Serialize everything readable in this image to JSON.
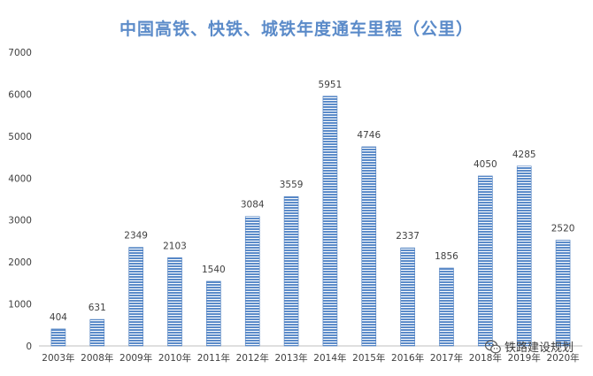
{
  "chart_data": {
    "type": "bar",
    "title": "中国高铁、快铁、城铁年度通车里程（公里）",
    "categories": [
      "2003年",
      "2008年",
      "2009年",
      "2010年",
      "2011年",
      "2012年",
      "2013年",
      "2014年",
      "2015年",
      "2016年",
      "2017年",
      "2018年",
      "2019年",
      "2020年"
    ],
    "values": [
      404,
      631,
      2349,
      2103,
      1540,
      3084,
      3559,
      5951,
      4746,
      2337,
      1856,
      4050,
      4285,
      2520
    ],
    "ylim": [
      0,
      7000
    ],
    "yticks": [
      0,
      1000,
      2000,
      3000,
      4000,
      5000,
      6000,
      7000
    ],
    "grid": false,
    "legend": "none",
    "bar_color": "#5b8bc9",
    "bar_stripe_color": "#ffffff"
  },
  "watermark": {
    "text": "铁路建设规划",
    "icon": "wechat-icon"
  },
  "colors": {
    "title": "#5b8bc9",
    "axis": "#bfbfbf",
    "text": "#404040"
  }
}
